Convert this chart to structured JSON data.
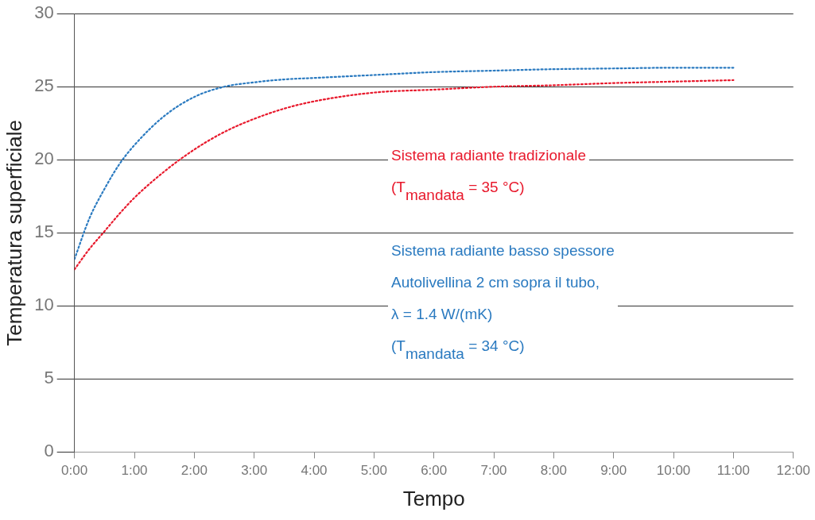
{
  "chart_data": {
    "type": "line",
    "xlabel": "Tempo",
    "ylabel": "Temperatura superficiale",
    "x": [
      0,
      0.25,
      0.5,
      0.75,
      1,
      1.5,
      2,
      2.5,
      3,
      3.5,
      4,
      5,
      6,
      7,
      8,
      9,
      10,
      11
    ],
    "series": [
      {
        "name": "Sistema radiante tradizionale\n(T$_{mandata}$ = 35 °C)",
        "color": "#e8192c",
        "values": [
          12.5,
          13.9,
          15.1,
          16.3,
          17.4,
          19.2,
          20.7,
          21.9,
          22.8,
          23.5,
          24,
          24.6,
          24.8,
          25,
          25.1,
          25.25,
          25.35,
          25.45
        ]
      },
      {
        "name": "Sistema radiante basso spessore\nAutolivellina 2 cm sopra il tubo,\nλ = 1.4 W/(mK)\n(T$_{mandata}$ = 34 °C)",
        "color": "#2a7ac0",
        "values": [
          13.2,
          16,
          18,
          19.7,
          21,
          23,
          24.3,
          25,
          25.3,
          25.5,
          25.6,
          25.8,
          26,
          26.1,
          26.2,
          26.25,
          26.3,
          26.3
        ]
      }
    ],
    "xlim": [
      0,
      12
    ],
    "xticks": [
      {
        "value": 0,
        "label": "0:00"
      },
      {
        "value": 1,
        "label": "1:00"
      },
      {
        "value": 2,
        "label": "2:00"
      },
      {
        "value": 3,
        "label": "3:00"
      },
      {
        "value": 4,
        "label": "4:00"
      },
      {
        "value": 5,
        "label": "5:00"
      },
      {
        "value": 6,
        "label": "6:00"
      },
      {
        "value": 7,
        "label": "7:00"
      },
      {
        "value": 8,
        "label": "8:00"
      },
      {
        "value": 9,
        "label": "9:00"
      },
      {
        "value": 10,
        "label": "10:00"
      },
      {
        "value": 11,
        "label": "11:00"
      },
      {
        "value": 12,
        "label": "12:00"
      }
    ],
    "ylim": [
      0,
      30
    ],
    "yticks": [
      0,
      5,
      10,
      15,
      20,
      25,
      30
    ],
    "grid": "y",
    "legend": "center",
    "marker": "none",
    "line_style": "dotted"
  }
}
